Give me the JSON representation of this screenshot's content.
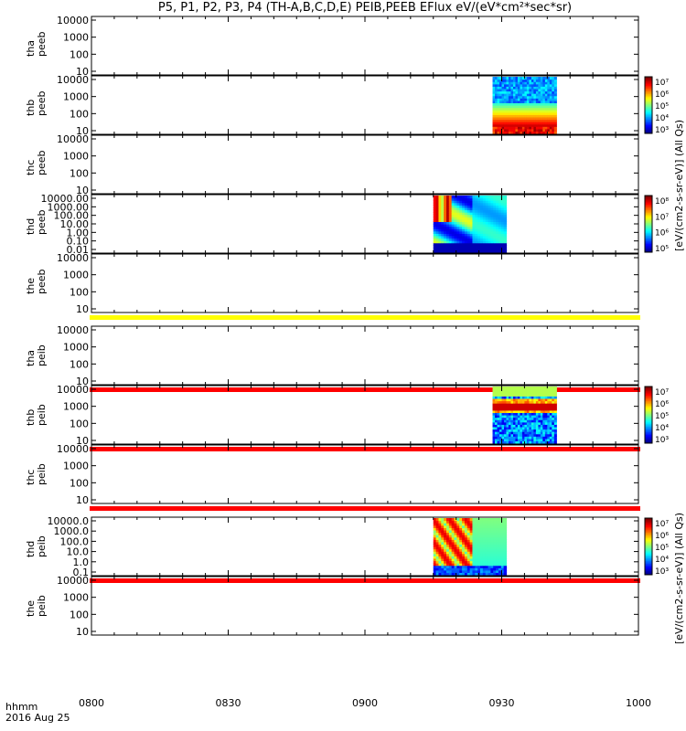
{
  "title": "P5, P1, P2, P3, P4 (TH-A,B,C,D,E) PEIB,PEEB EFlux eV/(eV*cm²*sec*sr)",
  "footer": {
    "time_label": "hhmm",
    "date_label": "2016 Aug 25"
  },
  "colors": {
    "axis": "#000000",
    "yellow_band": "#ffff00",
    "red_band": "#ff0000"
  },
  "chart_data": {
    "type": "heatmap",
    "title": "P5, P1, P2, P3, P4 (TH-A,B,C,D,E) PEIB,PEEB EFlux eV/(eV*cm²*sec*sr)",
    "x_axis": {
      "range": [
        "0800",
        "1000"
      ],
      "ticks": [
        "0800",
        "0830",
        "0900",
        "0930",
        "1000"
      ]
    },
    "colorbar_labels": {
      "upper": "[eV/(cm2-s-sr-eV)] (All Qs)",
      "lower": "[eV/(cm2-s-sr-eV)] (All Qs)"
    },
    "panels": [
      {
        "probe": "tha",
        "product": "peeb",
        "scale": "log",
        "yticks": [
          "10",
          "100",
          "1000",
          "10000"
        ],
        "data_span": null,
        "colorbar": false
      },
      {
        "probe": "thb",
        "product": "peeb",
        "scale": "log",
        "yticks": [
          "10",
          "100",
          "1000",
          "10000"
        ],
        "data_span": [
          "0928",
          "0942"
        ],
        "pattern": "electron_b",
        "colorbar": true,
        "cbar_ticks": [
          "10³",
          "10⁴",
          "10⁵",
          "10⁶",
          "10⁷"
        ]
      },
      {
        "probe": "thc",
        "product": "peeb",
        "scale": "log",
        "yticks": [
          "10",
          "100",
          "1000",
          "10000"
        ],
        "data_span": null,
        "colorbar": false
      },
      {
        "probe": "thd",
        "product": "peeb",
        "scale": "log",
        "yticks": [
          "0.01",
          "0.10",
          "1.00",
          "10.00",
          "100.00",
          "1000.00",
          "10000.00"
        ],
        "data_span": [
          "0915",
          "0931"
        ],
        "pattern": "electron_d",
        "colorbar": true,
        "cbar_ticks": [
          "10⁵",
          "10⁶",
          "10⁷",
          "10⁸"
        ]
      },
      {
        "probe": "the",
        "product": "peeb",
        "scale": "log",
        "yticks": [
          "10",
          "100",
          "1000",
          "10000"
        ],
        "data_span": null,
        "colorbar": false,
        "band": "yellow"
      },
      {
        "probe": "tha",
        "product": "peib",
        "scale": "log",
        "yticks": [
          "10",
          "100",
          "1000",
          "10000"
        ],
        "data_span": null,
        "colorbar": false,
        "band": "red"
      },
      {
        "probe": "thb",
        "product": "peib",
        "scale": "log",
        "yticks": [
          "10",
          "100",
          "1000",
          "10000"
        ],
        "data_span": [
          "0928",
          "0942"
        ],
        "pattern": "ion_b",
        "colorbar": true,
        "cbar_ticks": [
          "10³",
          "10⁴",
          "10⁵",
          "10⁶",
          "10⁷"
        ],
        "band": "red"
      },
      {
        "probe": "thc",
        "product": "peib",
        "scale": "log",
        "yticks": [
          "10",
          "100",
          "1000",
          "10000"
        ],
        "data_span": null,
        "colorbar": false,
        "band": "red"
      },
      {
        "probe": "thd",
        "product": "peib",
        "scale": "log",
        "yticks": [
          "0.1",
          "1.0",
          "10.0",
          "100.0",
          "1000.0",
          "10000.0"
        ],
        "data_span": [
          "0915",
          "0931"
        ],
        "pattern": "ion_d",
        "colorbar": true,
        "cbar_ticks": [
          "10³",
          "10⁴",
          "10⁵",
          "10⁶",
          "10⁷"
        ],
        "band": "red"
      },
      {
        "probe": "the",
        "product": "peib",
        "scale": "log",
        "yticks": [
          "10",
          "100",
          "1000",
          "10000"
        ],
        "data_span": null,
        "colorbar": false
      }
    ]
  }
}
